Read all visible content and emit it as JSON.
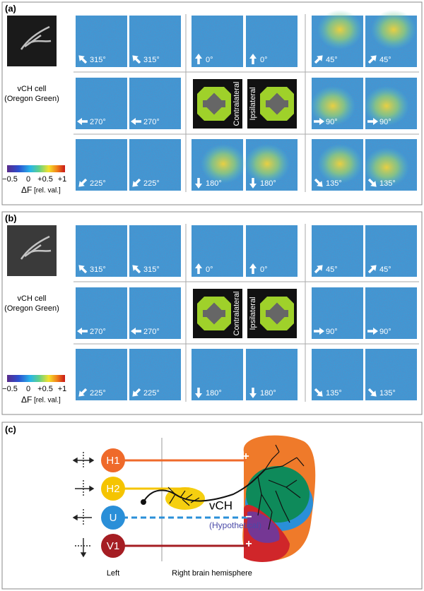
{
  "panels": [
    {
      "label": "(a)",
      "cell_label": [
        "vCH cell",
        "(Oregon Green)"
      ],
      "colorbar_ticks": [
        "−0.5",
        "0",
        "+0.5",
        "+1"
      ],
      "colorbar_label": "ΔF",
      "colorbar_unit": "[rel. val.]",
      "rows": [
        [
          "315°",
          "315°",
          "0°",
          "0°",
          "45°",
          "45°"
        ],
        [
          "270°",
          "270°",
          "90°",
          "90°"
        ],
        [
          "225°",
          "225°",
          "180°",
          "180°",
          "135°",
          "135°"
        ]
      ],
      "stimulus": [
        "Contralateral",
        "Ipsilateral"
      ]
    },
    {
      "label": "(b)",
      "cell_label": [
        "vCH cell",
        "(Oregon Green)"
      ],
      "colorbar_ticks": [
        "−0.5",
        "0",
        "+0.5",
        "+1"
      ],
      "colorbar_label": "ΔF",
      "colorbar_unit": "[rel. val.]",
      "rows": [
        [
          "315°",
          "315°",
          "0°",
          "0°",
          "45°",
          "45°"
        ],
        [
          "270°",
          "270°",
          "90°",
          "90°"
        ],
        [
          "225°",
          "225°",
          "180°",
          "180°",
          "135°",
          "135°"
        ]
      ],
      "stimulus": [
        "Contralateral",
        "Ipsilateral"
      ]
    }
  ],
  "diagram": {
    "label": "(c)",
    "neurons": [
      "H1",
      "H2",
      "U",
      "V1"
    ],
    "signs": [
      "+",
      "−",
      "+"
    ],
    "cell": "vCH",
    "hypothetical": "(Hypothetical)",
    "left": "Left",
    "right": "Right brain hemisphere"
  }
}
